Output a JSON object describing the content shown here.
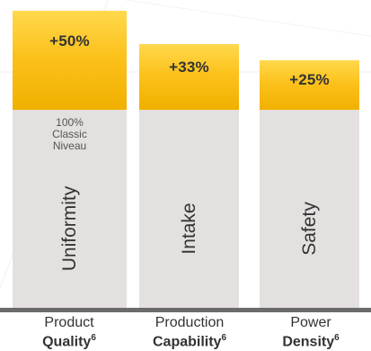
{
  "chart_data": {
    "type": "bar",
    "categories": [
      {
        "line1": "Product",
        "line2": "Quality",
        "footnote": "6"
      },
      {
        "line1": "Production",
        "line2": "Capability",
        "footnote": "6"
      },
      {
        "line1": "Power",
        "line2": "Density",
        "footnote": "6"
      }
    ],
    "series": [
      {
        "values": [
          100,
          100,
          100
        ],
        "labels": [
          "Uniformity",
          "Intake",
          "Safety"
        ],
        "color": "#e3e0df"
      },
      {
        "values": [
          50,
          33,
          25
        ],
        "labels": [
          "+50%",
          "+33%",
          "+25%"
        ],
        "color": "#fcc21c"
      }
    ],
    "baseline_note": [
      "100%",
      "Classic",
      "Niveau"
    ],
    "stacked": true,
    "ylim": [
      0,
      150
    ]
  }
}
